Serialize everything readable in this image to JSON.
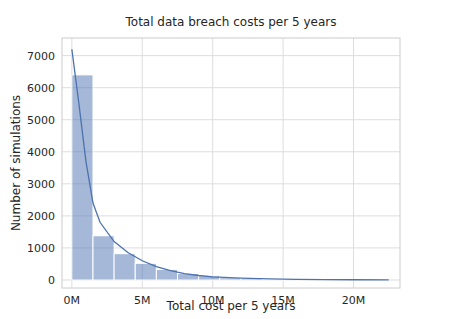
{
  "chart_data": {
    "type": "histogram",
    "title": "Total data breach costs per 5 years",
    "x_label": "Total cost per 5 years",
    "y_label": "Number of simulations",
    "bins": [
      0,
      1500000,
      3000000,
      4500000,
      6000000,
      7500000,
      9000000,
      10500000,
      12000000,
      13500000,
      15000000,
      16500000,
      18000000,
      19500000,
      21000000,
      22500000
    ],
    "values": [
      6400,
      1380,
      820,
      520,
      330,
      200,
      130,
      70,
      50,
      30,
      20,
      15,
      10,
      5,
      3
    ],
    "color": "#4c72b0",
    "series": [
      {
        "type": "line",
        "color": "#4c72b0",
        "x": [
          0,
          500000,
          1000000,
          1500000,
          2000000,
          3000000,
          4000000,
          5000000,
          6000000,
          7000000,
          8000000,
          9000000,
          10000000,
          12000000,
          14000000,
          16000000,
          18000000,
          20000000,
          22500000
        ],
        "values": [
          7200,
          5500,
          3700,
          2400,
          1800,
          1200,
          850,
          600,
          420,
          290,
          200,
          140,
          100,
          60,
          35,
          20,
          12,
          8,
          5
        ]
      }
    ],
    "xlim": [
      -700000,
      23300000
    ],
    "ylim": [
      -250,
      7550
    ],
    "xticks": [
      {
        "value": 0,
        "label": "0M"
      },
      {
        "value": 5000000,
        "label": "5M"
      },
      {
        "value": 10000000,
        "label": "10M"
      },
      {
        "value": 15000000,
        "label": "15M"
      },
      {
        "value": 20000000,
        "label": "20M"
      }
    ],
    "yticks": [
      0,
      1000,
      2000,
      3000,
      4000,
      5000,
      6000,
      7000
    ],
    "grid": true
  }
}
